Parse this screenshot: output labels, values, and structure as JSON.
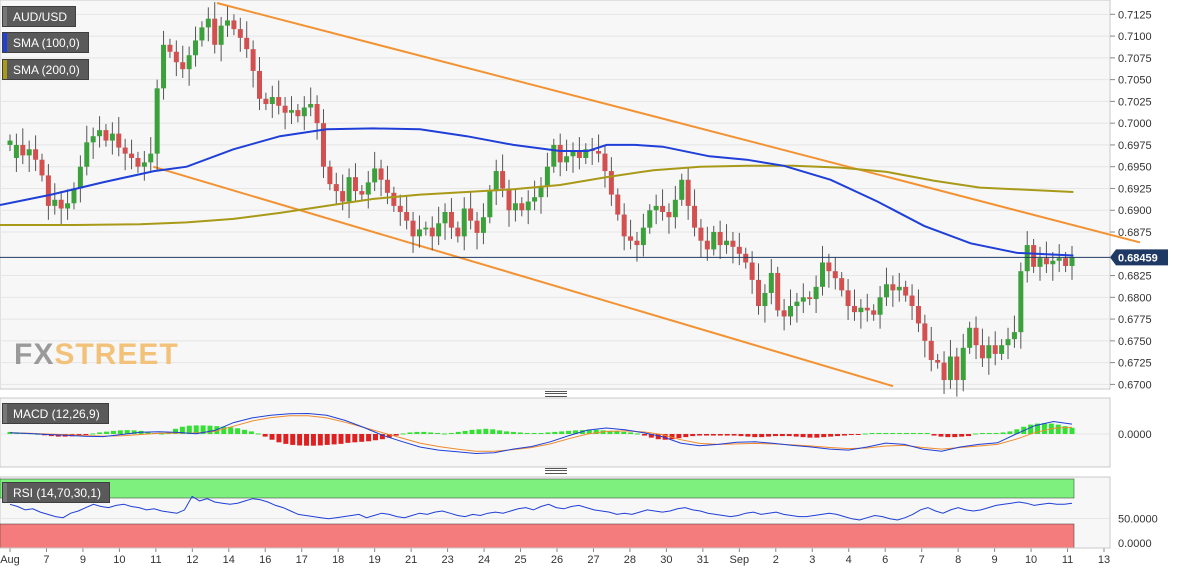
{
  "chart_data": [
    {
      "type": "candlestick",
      "symbol": "AUD/USD",
      "last_price": "0.68459",
      "y_tick_labels": [
        "0.7125",
        "0.7100",
        "0.7075",
        "0.7050",
        "0.7025",
        "0.7000",
        "0.6975",
        "0.6950",
        "0.6925",
        "0.6900",
        "0.6875",
        "0.6825",
        "0.6800",
        "0.6775",
        "0.6750",
        "0.6725",
        "0.6700"
      ],
      "y_ticks": [
        0.7125,
        0.71,
        0.7075,
        0.705,
        0.7025,
        0.7,
        0.6975,
        0.695,
        0.6925,
        0.69,
        0.6875,
        0.6825,
        0.68,
        0.6775,
        0.675,
        0.6725,
        0.67
      ],
      "ylim": [
        0.6697,
        0.7138
      ],
      "x_tick_labels": [
        "Aug",
        "7",
        "9",
        "10",
        "11",
        "12",
        "14",
        "16",
        "17",
        "18",
        "19",
        "21",
        "23",
        "24",
        "25",
        "26",
        "27",
        "28",
        "30",
        "31",
        "Sep",
        "2",
        "3",
        "4",
        "6",
        "7",
        "8",
        "9",
        "10",
        "11",
        "13"
      ],
      "indicators": [
        "SMA (100,0)",
        "SMA (200,0)"
      ],
      "colors": {
        "up": "#3ca03c",
        "down": "#d25050",
        "sma100": "#1f3fd8",
        "sma200": "#a89a18",
        "trendline": "#f39232",
        "price_line": "#1e3a64"
      },
      "channel_upper": [
        {
          "x": 0.1955,
          "y": 0.7138
        },
        {
          "x": 1.0,
          "y": 0.6863
        }
      ],
      "channel_lower": [
        {
          "x": 0.1381,
          "y": 0.695
        },
        {
          "x": 0.8045,
          "y": 0.6698
        }
      ],
      "close": [
        0.698,
        0.6975,
        0.6963,
        0.697,
        0.6958,
        0.694,
        0.6905,
        0.6912,
        0.6902,
        0.6908,
        0.6925,
        0.695,
        0.6978,
        0.6985,
        0.6992,
        0.698,
        0.6988,
        0.6972,
        0.6965,
        0.696,
        0.695,
        0.6955,
        0.6965,
        0.704,
        0.709,
        0.7082,
        0.707,
        0.7062,
        0.7078,
        0.7095,
        0.711,
        0.712,
        0.709,
        0.7112,
        0.7118,
        0.7108,
        0.7098,
        0.7085,
        0.706,
        0.7028,
        0.7022,
        0.703,
        0.702,
        0.7012,
        0.7015,
        0.7008,
        0.7018,
        0.7022,
        0.7,
        0.695,
        0.693,
        0.6922,
        0.691,
        0.6938,
        0.6922,
        0.6918,
        0.6932,
        0.6948,
        0.6935,
        0.692,
        0.6905,
        0.6898,
        0.6888,
        0.687,
        0.6878,
        0.688,
        0.687,
        0.6885,
        0.6898,
        0.688,
        0.687,
        0.6902,
        0.6888,
        0.6874,
        0.6892,
        0.6922,
        0.6945,
        0.6925,
        0.69,
        0.6908,
        0.69,
        0.691,
        0.6915,
        0.6928,
        0.695,
        0.6975,
        0.6955,
        0.6962,
        0.6968,
        0.696,
        0.697,
        0.6968,
        0.6965,
        0.6945,
        0.6918,
        0.6895,
        0.687,
        0.6865,
        0.686,
        0.688,
        0.69,
        0.6905,
        0.6898,
        0.6892,
        0.6912,
        0.6935,
        0.6905,
        0.688,
        0.6865,
        0.6855,
        0.6875,
        0.686,
        0.6865,
        0.6858,
        0.685,
        0.684,
        0.682,
        0.679,
        0.6805,
        0.6828,
        0.6785,
        0.6778,
        0.679,
        0.6795,
        0.68,
        0.6798,
        0.6812,
        0.684,
        0.683,
        0.6822,
        0.6808,
        0.679,
        0.6783,
        0.6788,
        0.6785,
        0.678,
        0.68,
        0.6815,
        0.6808,
        0.6812,
        0.6802,
        0.679,
        0.677,
        0.675,
        0.6728,
        0.6725,
        0.6705,
        0.6732,
        0.6705,
        0.6742,
        0.6765,
        0.6745,
        0.673,
        0.6745,
        0.6735,
        0.6745,
        0.6752,
        0.676,
        0.683,
        0.686,
        0.6835,
        0.6845,
        0.6838,
        0.6842,
        0.6845,
        0.6836,
        0.6846
      ],
      "open": [
        0.6975,
        0.696,
        0.6975,
        0.6963,
        0.697,
        0.6958,
        0.694,
        0.6905,
        0.6912,
        0.6902,
        0.6908,
        0.6925,
        0.695,
        0.6978,
        0.6985,
        0.6992,
        0.698,
        0.6988,
        0.6972,
        0.6965,
        0.696,
        0.695,
        0.6955,
        0.6965,
        0.704,
        0.709,
        0.7082,
        0.707,
        0.7062,
        0.7078,
        0.7095,
        0.711,
        0.712,
        0.709,
        0.7112,
        0.7118,
        0.7108,
        0.7098,
        0.7085,
        0.706,
        0.7028,
        0.7022,
        0.703,
        0.702,
        0.7012,
        0.7015,
        0.7008,
        0.7018,
        0.7022,
        0.7,
        0.695,
        0.693,
        0.6922,
        0.691,
        0.6938,
        0.6922,
        0.6918,
        0.6932,
        0.6948,
        0.6935,
        0.692,
        0.6905,
        0.6898,
        0.6888,
        0.687,
        0.6878,
        0.688,
        0.687,
        0.6885,
        0.6898,
        0.688,
        0.687,
        0.6902,
        0.6888,
        0.6874,
        0.6892,
        0.6922,
        0.6945,
        0.6925,
        0.69,
        0.6908,
        0.69,
        0.691,
        0.6915,
        0.6928,
        0.695,
        0.6975,
        0.6955,
        0.6962,
        0.6968,
        0.696,
        0.697,
        0.6968,
        0.6965,
        0.6945,
        0.6918,
        0.6895,
        0.687,
        0.6865,
        0.686,
        0.688,
        0.69,
        0.6905,
        0.6898,
        0.6892,
        0.6912,
        0.6935,
        0.6905,
        0.688,
        0.6865,
        0.6855,
        0.6875,
        0.686,
        0.6865,
        0.6858,
        0.685,
        0.684,
        0.682,
        0.679,
        0.6805,
        0.6828,
        0.6785,
        0.6778,
        0.679,
        0.6795,
        0.68,
        0.6798,
        0.6812,
        0.684,
        0.683,
        0.6822,
        0.6808,
        0.679,
        0.6783,
        0.6788,
        0.6785,
        0.678,
        0.68,
        0.6815,
        0.6808,
        0.6812,
        0.6802,
        0.679,
        0.677,
        0.675,
        0.6728,
        0.6725,
        0.6705,
        0.6732,
        0.6705,
        0.6742,
        0.6765,
        0.6745,
        0.673,
        0.6745,
        0.6735,
        0.6745,
        0.6752,
        0.676,
        0.683,
        0.686,
        0.6835,
        0.6845,
        0.6838,
        0.6842,
        0.6845,
        0.6836
      ],
      "sma100": [
        0.6906,
        0.6918,
        0.6932,
        0.6945,
        0.695,
        0.697,
        0.6985,
        0.6993,
        0.6994,
        0.6993,
        0.6985,
        0.6975,
        0.6968,
        0.6968,
        0.6975,
        0.6975,
        0.6973,
        0.6962,
        0.6958,
        0.6951,
        0.6935,
        0.691,
        0.6882,
        0.6862,
        0.6851,
        0.6848
      ],
      "sma100_x": [
        0.0,
        0.0478,
        0.0957,
        0.1435,
        0.1739,
        0.2174,
        0.2609,
        0.3043,
        0.3478,
        0.3913,
        0.4348,
        0.4783,
        0.5217,
        0.5478,
        0.5652,
        0.5913,
        0.6174,
        0.6609,
        0.6957,
        0.7304,
        0.7739,
        0.8174,
        0.8609,
        0.9043,
        0.9478,
        1.0
      ],
      "sma200": [
        0.6883,
        0.6883,
        0.6884,
        0.6886,
        0.689,
        0.6897,
        0.6905,
        0.6913,
        0.6918,
        0.6921,
        0.6924,
        0.6929,
        0.6938,
        0.6946,
        0.695,
        0.6951,
        0.6951,
        0.6949,
        0.6944,
        0.6934,
        0.6926,
        0.6921
      ],
      "sma200_x": [
        0.0,
        0.0696,
        0.1304,
        0.1739,
        0.2174,
        0.2609,
        0.3043,
        0.3478,
        0.3913,
        0.4348,
        0.4783,
        0.5217,
        0.5652,
        0.6087,
        0.6522,
        0.6957,
        0.7391,
        0.7826,
        0.8261,
        0.8696,
        0.913,
        1.0
      ]
    },
    {
      "type": "bar",
      "indicator": "MACD (12,26,9)",
      "y_tick_labels": [
        "0.0000"
      ],
      "y_ticks": [
        0
      ],
      "ylim": [
        -1,
        1
      ],
      "colors": {
        "hist_up": "#33e033",
        "hist_down": "#e02020",
        "macd": "#1f3fd8",
        "signal": "#f08a2c"
      },
      "histogram": [
        0.08,
        0.06,
        0.04,
        0.03,
        0.01,
        -0.05,
        -0.08,
        -0.1,
        -0.1,
        -0.09,
        -0.05,
        -0.02,
        0.02,
        0.06,
        0.09,
        0.12,
        0.14,
        0.15,
        0.14,
        0.12,
        0.08,
        0.04,
        0.02,
        0.08,
        0.2,
        0.28,
        0.32,
        0.33,
        0.33,
        0.32,
        0.3,
        0.28,
        0.26,
        0.22,
        0.16,
        0.1,
        0.02,
        -0.1,
        -0.22,
        -0.32,
        -0.38,
        -0.42,
        -0.44,
        -0.45,
        -0.45,
        -0.44,
        -0.42,
        -0.4,
        -0.38,
        -0.34,
        -0.32,
        -0.3,
        -0.28,
        -0.24,
        -0.2,
        -0.14,
        -0.06,
        0.02,
        0.06,
        0.08,
        0.08,
        0.06,
        0.04,
        0.02,
        0.04,
        0.08,
        0.12,
        0.16,
        0.18,
        0.2,
        0.18,
        0.14,
        0.1,
        0.08,
        0.06,
        0.04,
        0.04,
        0.04,
        0.06,
        0.08,
        0.1,
        0.12,
        0.14,
        0.15,
        0.16,
        0.16,
        0.14,
        0.12,
        0.1,
        0.08,
        0.06,
        0.02,
        -0.06,
        -0.14,
        -0.2,
        -0.22,
        -0.2,
        -0.16,
        -0.12,
        -0.08,
        -0.06,
        -0.06,
        -0.06,
        -0.06,
        -0.06,
        -0.06,
        -0.08,
        -0.1,
        -0.12,
        -0.12,
        -0.1,
        -0.08,
        -0.08,
        -0.08,
        -0.1,
        -0.12,
        -0.14,
        -0.14,
        -0.12,
        -0.1,
        -0.08,
        -0.06,
        -0.04,
        -0.02,
        0.02,
        0.04,
        0.04,
        0.04,
        0.04,
        0.04,
        0.04,
        0.04,
        0.04,
        0.04,
        -0.06,
        -0.1,
        -0.12,
        -0.12,
        -0.1,
        -0.08,
        0.02,
        0.04,
        0.04,
        0.04,
        0.06,
        0.1,
        0.18,
        0.28,
        0.36,
        0.4,
        0.42,
        0.4,
        0.36,
        0.3,
        0.24
      ],
      "macd": [
        0.05,
        0.02,
        -0.02,
        -0.05,
        -0.09,
        -0.1,
        -0.02,
        0.07,
        0.09,
        0.06,
        0.01,
        0.14,
        0.44,
        0.62,
        0.72,
        0.78,
        0.79,
        0.72,
        0.52,
        0.25,
        -0.05,
        -0.28,
        -0.5,
        -0.62,
        -0.68,
        -0.75,
        -0.72,
        -0.58,
        -0.48,
        -0.3,
        -0.06,
        0.15,
        0.23,
        0.16,
        0.05,
        -0.1,
        -0.35,
        -0.45,
        -0.4,
        -0.32,
        -0.3,
        -0.36,
        -0.44,
        -0.5,
        -0.58,
        -0.62,
        -0.5,
        -0.35,
        -0.4,
        -0.58,
        -0.66,
        -0.5,
        -0.4,
        -0.34,
        0.0,
        0.32,
        0.48,
        0.38
      ],
      "macd_x": [
        0.0,
        0.0348,
        0.0696,
        0.1043,
        0.1304,
        0.1478,
        0.1565,
        0.1739,
        0.2,
        0.2348,
        0.2522,
        0.2696,
        0.2957,
        0.3217,
        0.3478,
        0.3739,
        0.4,
        0.4261,
        0.4522,
        0.4783,
        0.5043,
        0.5304,
        0.5565,
        0.5826,
        0.6087,
        0.6348,
        0.6609,
        0.687,
        0.7043,
        0.7217,
        0.7478,
        0.7739,
        0.7913,
        0.8087,
        0.8261,
        0.8435,
        0.8696,
        0.8957,
        0.913,
        0.9304,
        0.9478,
        0.9652,
        0.9739,
        0.9826,
        0.9913,
        1.0,
        0.0,
        0.0,
        0.0,
        0.0,
        0.0,
        0.0,
        0.0,
        0.0,
        0.0,
        0.0,
        0.0,
        0.0
      ],
      "signal": [
        0.05,
        0.03,
        0.0,
        -0.03,
        -0.06,
        -0.08,
        -0.07,
        -0.02,
        0.03,
        0.04,
        0.04,
        0.1,
        0.3,
        0.5,
        0.63,
        0.7,
        0.7,
        0.62,
        0.45,
        0.25,
        0.05,
        -0.15,
        -0.35,
        -0.48,
        -0.58,
        -0.66,
        -0.66,
        -0.6,
        -0.52,
        -0.38,
        -0.18,
        0.0,
        0.1,
        0.12,
        0.08,
        -0.02,
        -0.22,
        -0.36,
        -0.4,
        -0.38,
        -0.36,
        -0.38,
        -0.42,
        -0.46,
        -0.52,
        -0.56,
        -0.54,
        -0.46,
        -0.44,
        -0.52,
        -0.58,
        -0.52,
        -0.46,
        -0.4,
        -0.2,
        0.05,
        0.22,
        0.26
      ]
    },
    {
      "type": "line",
      "indicator": "RSI (14,70,30,1)",
      "y_tick_labels": [
        "50.0000",
        "0.0000"
      ],
      "y_ticks": [
        50,
        0
      ],
      "ylim": [
        0,
        100
      ],
      "overbought": 70,
      "oversold": 30,
      "colors": {
        "rsi": "#1f3fd8",
        "overbought_fill": "#7ef07e",
        "oversold_fill": "#f57c7c"
      },
      "values": [
        62,
        58,
        52,
        54,
        48,
        44,
        40,
        38,
        46,
        50,
        56,
        62,
        58,
        56,
        60,
        62,
        58,
        56,
        52,
        54,
        50,
        48,
        46,
        52,
        76,
        68,
        72,
        66,
        64,
        62,
        64,
        68,
        72,
        70,
        66,
        60,
        56,
        50,
        44,
        42,
        40,
        38,
        36,
        38,
        40,
        42,
        44,
        38,
        42,
        46,
        44,
        40,
        38,
        42,
        46,
        44,
        48,
        50,
        46,
        42,
        40,
        44,
        42,
        46,
        48,
        46,
        50,
        54,
        56,
        52,
        58,
        62,
        56,
        54,
        58,
        60,
        56,
        52,
        50,
        48,
        44,
        46,
        44,
        48,
        52,
        50,
        48,
        50,
        54,
        56,
        52,
        50,
        46,
        44,
        42,
        40,
        42,
        46,
        48,
        44,
        46,
        48,
        44,
        42,
        40,
        40,
        42,
        44,
        46,
        44,
        40,
        36,
        34,
        38,
        42,
        40,
        36,
        34,
        38,
        44,
        52,
        56,
        50,
        46,
        52,
        56,
        52,
        50,
        52,
        56,
        60,
        62,
        64,
        66,
        64,
        60,
        62,
        64,
        62,
        62,
        64
      ]
    }
  ],
  "legend": {
    "symbol_label": "AUD/USD",
    "sma100_label": "SMA (100,0)",
    "sma200_label": "SMA (200,0)",
    "macd_label": "MACD (12,26,9)",
    "rsi_label": "RSI (14,70,30,1)"
  },
  "watermark": {
    "part1": "FX",
    "part2": "STREET",
    "color1": "#9a9a9a",
    "color2": "#f3c27a"
  }
}
